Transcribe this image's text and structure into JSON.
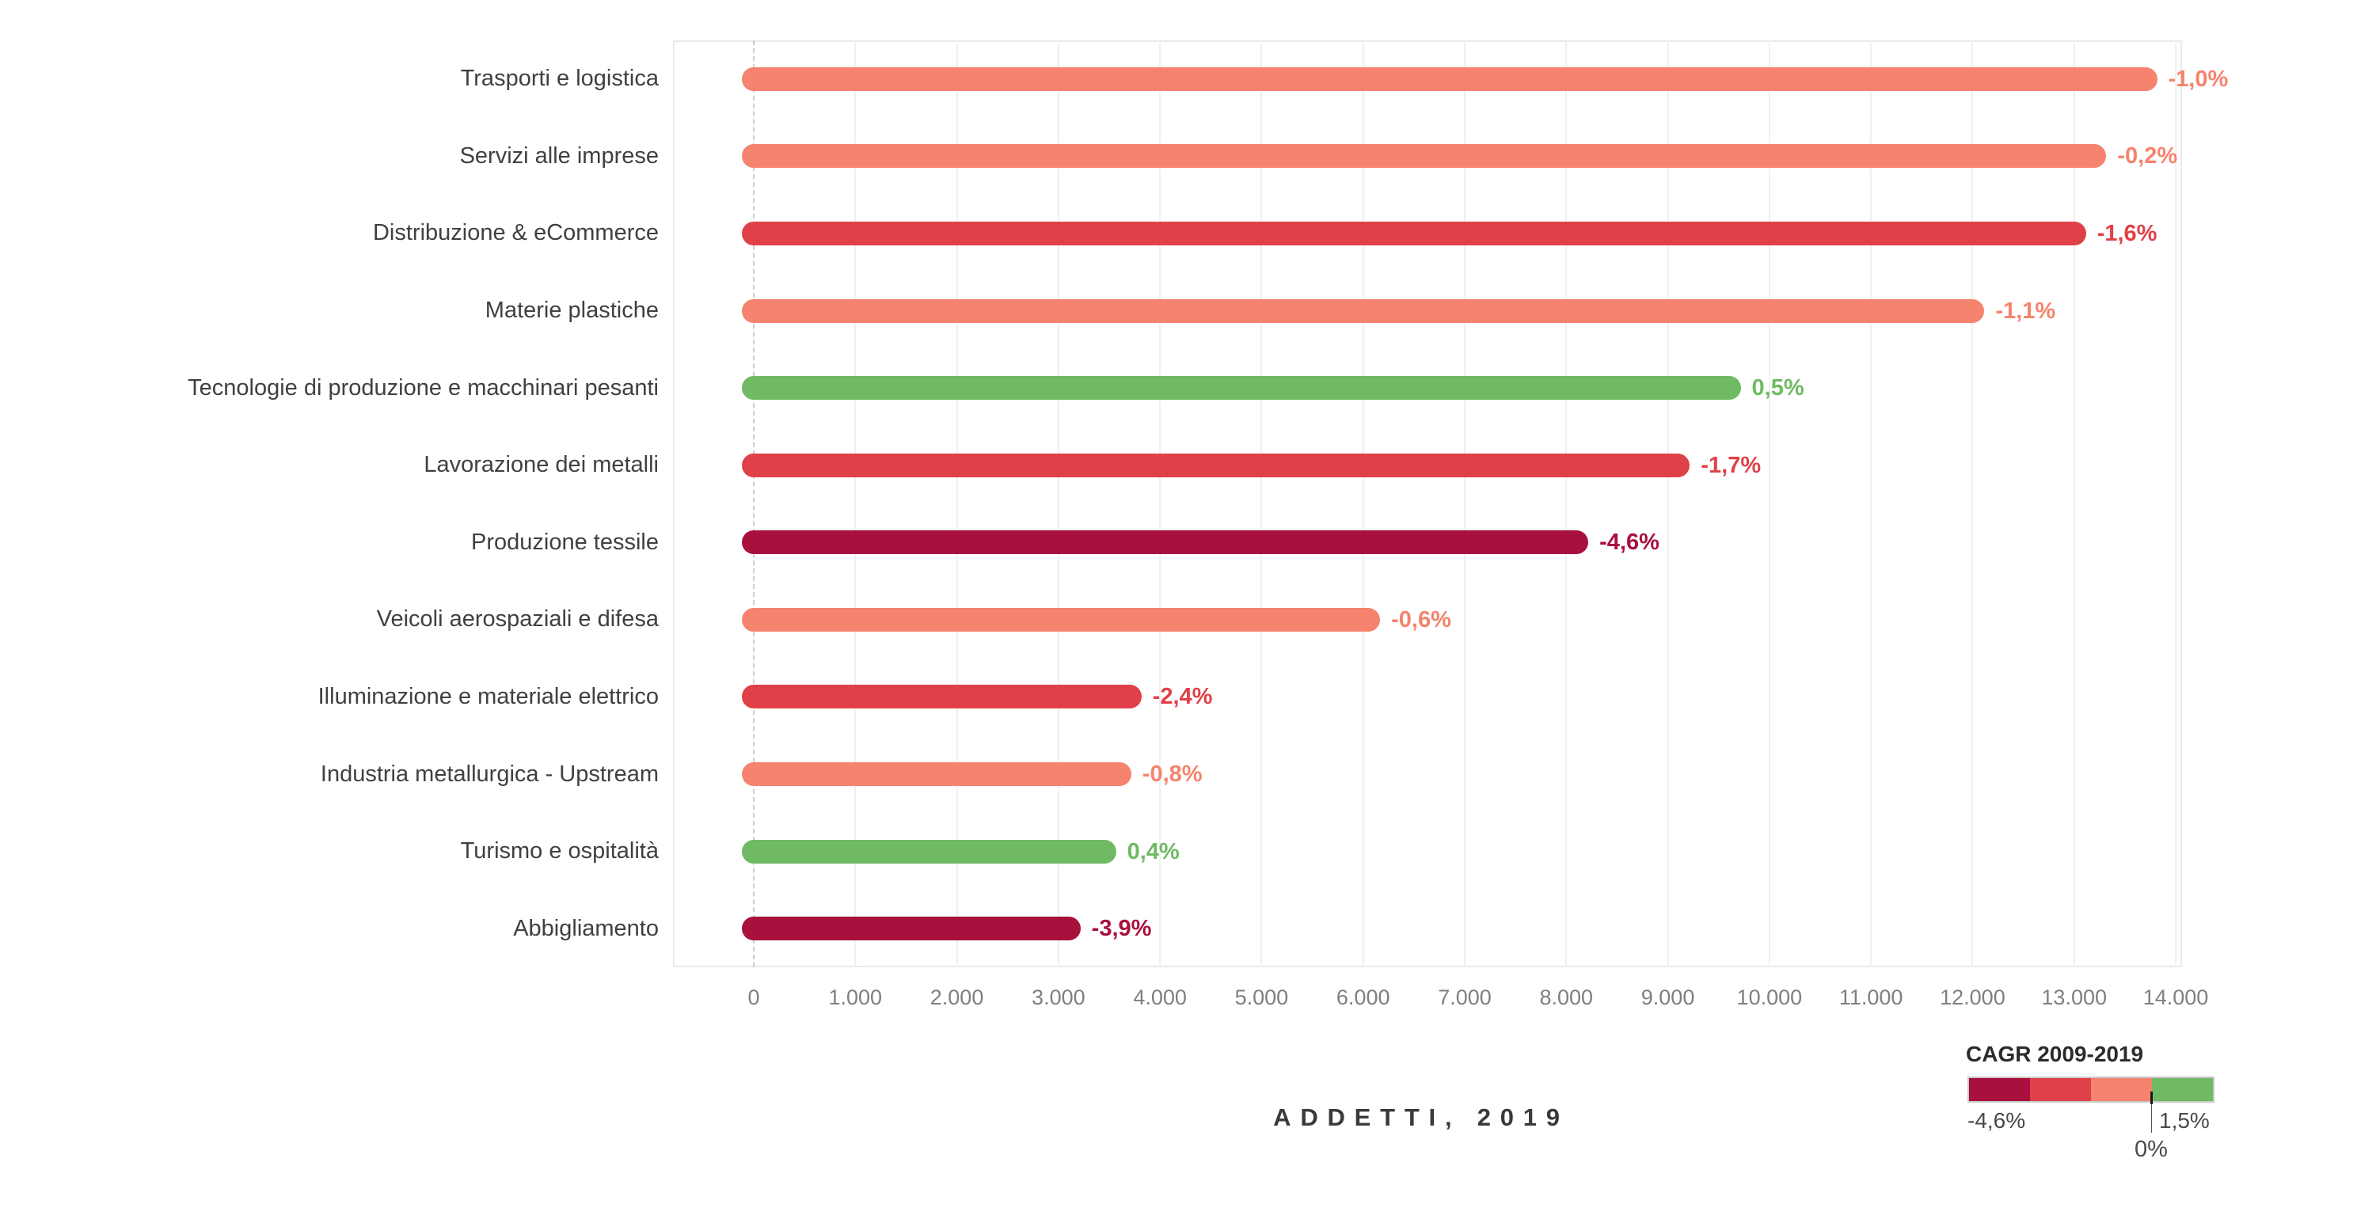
{
  "chart_data": {
    "type": "bar",
    "orientation": "horizontal",
    "title": "",
    "xlabel": "ADDETTI, 2019",
    "ylabel": "",
    "xlim": [
      0,
      14000
    ],
    "grid": "vertical",
    "x_tick_labels": [
      "0",
      "1.000",
      "2.000",
      "3.000",
      "4.000",
      "5.000",
      "6.000",
      "7.000",
      "8.000",
      "9.000",
      "10.000",
      "11.000",
      "12.000",
      "13.000",
      "14.000"
    ],
    "bars": [
      {
        "category": "Trasporti e logistica",
        "value": 13700,
        "cagr_label": "-1,0%",
        "cagr": -1.0,
        "color_key": "salmon"
      },
      {
        "category": "Servizi alle imprese",
        "value": 13200,
        "cagr_label": "-0,2%",
        "cagr": -0.2,
        "color_key": "salmon"
      },
      {
        "category": "Distribuzione & eCommerce",
        "value": 13000,
        "cagr_label": "-1,6%",
        "cagr": -1.6,
        "color_key": "red"
      },
      {
        "category": "Materie plastiche",
        "value": 12000,
        "cagr_label": "-1,1%",
        "cagr": -1.1,
        "color_key": "salmon"
      },
      {
        "category": "Tecnologie di produzione e macchinari pesanti",
        "value": 9600,
        "cagr_label": "0,5%",
        "cagr": 0.5,
        "color_key": "green"
      },
      {
        "category": "Lavorazione dei metalli",
        "value": 9100,
        "cagr_label": "-1,7%",
        "cagr": -1.7,
        "color_key": "red"
      },
      {
        "category": "Produzione tessile",
        "value": 8100,
        "cagr_label": "-4,6%",
        "cagr": -4.6,
        "color_key": "darkred"
      },
      {
        "category": "Veicoli aerospaziali e difesa",
        "value": 6050,
        "cagr_label": "-0,6%",
        "cagr": -0.6,
        "color_key": "salmon"
      },
      {
        "category": "Illuminazione e materiale elettrico",
        "value": 3700,
        "cagr_label": "-2,4%",
        "cagr": -2.4,
        "color_key": "red"
      },
      {
        "category": "Industria metallurgica - Upstream",
        "value": 3600,
        "cagr_label": "-0,8%",
        "cagr": -0.8,
        "color_key": "salmon"
      },
      {
        "category": "Turismo e ospitalità",
        "value": 3450,
        "cagr_label": "0,4%",
        "cagr": 0.4,
        "color_key": "green"
      },
      {
        "category": "Abbigliamento",
        "value": 3100,
        "cagr_label": "-3,9%",
        "cagr": -3.9,
        "color_key": "darkred"
      }
    ]
  },
  "palette": {
    "darkred": "#A8103E",
    "red": "#E04047",
    "salmon": "#F5836D",
    "green": "#6FBA63"
  },
  "axis": {
    "tick_color": "#7f7f7f",
    "gridline_color": "#f0f0f0",
    "zero_line_style": "dashed"
  },
  "legend": {
    "title": "CAGR 2009-2019",
    "min_label": "-4,6%",
    "max_label": "1,5%",
    "zero_label": "0%",
    "range": [
      -4.6,
      1.5
    ],
    "segment_keys": [
      "darkred",
      "red",
      "salmon",
      "green"
    ]
  }
}
